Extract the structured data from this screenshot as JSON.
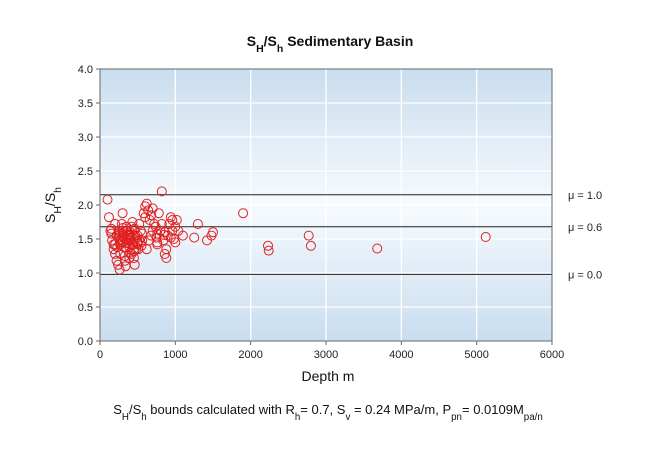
{
  "chart_data": {
    "type": "scatter",
    "title": {
      "main": "S",
      "sub1": "H",
      "slash": "/S",
      "sub2": "h",
      "rest": " Sedimentary Basin"
    },
    "xlabel": "Depth  m",
    "ylabel": {
      "main": "S",
      "sub1": "H",
      "slash": "/S",
      "sub2": "h"
    },
    "xlim": [
      0,
      6000
    ],
    "ylim": [
      0,
      4
    ],
    "xticks": [
      "0",
      "1000",
      "2000",
      "3000",
      "4000",
      "5000",
      "6000"
    ],
    "yticks": [
      "0.0",
      "0.5",
      "1.0",
      "1.5",
      "2.0",
      "2.5",
      "3.0",
      "3.5",
      "4.0"
    ],
    "grid": true,
    "marker_color": "#e02020",
    "reference_lines": [
      {
        "y": 2.15,
        "label": "μ = 1.0"
      },
      {
        "y": 1.68,
        "label": "μ = 0.6"
      },
      {
        "y": 0.98,
        "label": "μ = 0.0"
      }
    ],
    "caption": [
      {
        "t": "S"
      },
      {
        "t": "H",
        "sub": true
      },
      {
        "t": "/S"
      },
      {
        "t": "h",
        "sub": true
      },
      {
        "t": " bounds calculated with R"
      },
      {
        "t": "h",
        "sub": true
      },
      {
        "t": "= 0.7, S"
      },
      {
        "t": "v",
        "sub": true
      },
      {
        "t": " = 0.24 MPa/m,  P"
      },
      {
        "t": "pn",
        "sub": true
      },
      {
        "t": "= 0.0109M"
      },
      {
        "t": "pa/n",
        "sub": true
      }
    ],
    "x": [
      100,
      120,
      140,
      160,
      180,
      200,
      220,
      240,
      260,
      270,
      280,
      290,
      300,
      310,
      320,
      330,
      340,
      350,
      360,
      370,
      380,
      390,
      400,
      410,
      420,
      430,
      440,
      450,
      460,
      480,
      500,
      520,
      540,
      560,
      580,
      600,
      620,
      640,
      660,
      680,
      700,
      720,
      740,
      760,
      780,
      800,
      820,
      840,
      860,
      880,
      900,
      920,
      940,
      960,
      980,
      1000,
      1020,
      1040,
      180,
      220,
      260,
      300,
      340,
      380,
      420,
      460,
      500,
      560,
      620,
      700,
      760,
      820,
      880,
      940,
      1000,
      150,
      200,
      250,
      300,
      350,
      400,
      450,
      520,
      600,
      680,
      760,
      860,
      960,
      230,
      270,
      310,
      350,
      390,
      430,
      470,
      510,
      270,
      330,
      390,
      450,
      150,
      200,
      250,
      300,
      350,
      400,
      450,
      500,
      550,
      650,
      750,
      850,
      250,
      300,
      350,
      400,
      450,
      500,
      1100,
      1250,
      1300,
      1420,
      1480,
      1500,
      1900,
      2230,
      2240,
      2770,
      2800,
      3680,
      5120
    ],
    "y": [
      2.08,
      1.82,
      1.62,
      1.48,
      1.35,
      1.28,
      1.18,
      1.12,
      1.05,
      1.42,
      1.58,
      1.72,
      1.88,
      1.52,
      1.38,
      1.25,
      1.1,
      1.45,
      1.62,
      1.55,
      1.48,
      1.38,
      1.3,
      1.52,
      1.68,
      1.75,
      1.42,
      1.22,
      1.12,
      1.35,
      1.55,
      1.72,
      1.62,
      1.48,
      1.88,
      1.98,
      2.02,
      1.92,
      1.78,
      1.85,
      1.95,
      1.72,
      1.68,
      1.58,
      1.88,
      1.62,
      2.2,
      1.48,
      1.28,
      1.35,
      1.55,
      1.72,
      1.82,
      1.62,
      1.5,
      1.45,
      1.78,
      1.62,
      1.42,
      1.55,
      1.48,
      1.62,
      1.38,
      1.52,
      1.28,
      1.65,
      1.42,
      1.58,
      1.35,
      1.62,
      1.45,
      1.72,
      1.22,
      1.52,
      1.68,
      1.65,
      1.72,
      1.58,
      1.45,
      1.68,
      1.55,
      1.35,
      1.48,
      1.82,
      1.55,
      1.42,
      1.6,
      1.78,
      1.38,
      1.45,
      1.58,
      1.62,
      1.48,
      1.42,
      1.55,
      1.35,
      1.28,
      1.18,
      1.22,
      1.32,
      1.58,
      1.42,
      1.52,
      1.66,
      1.44,
      1.6,
      1.5,
      1.46,
      1.4,
      1.48,
      1.52,
      1.56,
      1.62,
      1.55,
      1.48,
      1.57,
      1.63,
      1.44,
      1.55,
      1.52,
      1.72,
      1.48,
      1.55,
      1.6,
      1.88,
      1.4,
      1.33,
      1.55,
      1.4,
      1.36,
      1.53
    ]
  }
}
